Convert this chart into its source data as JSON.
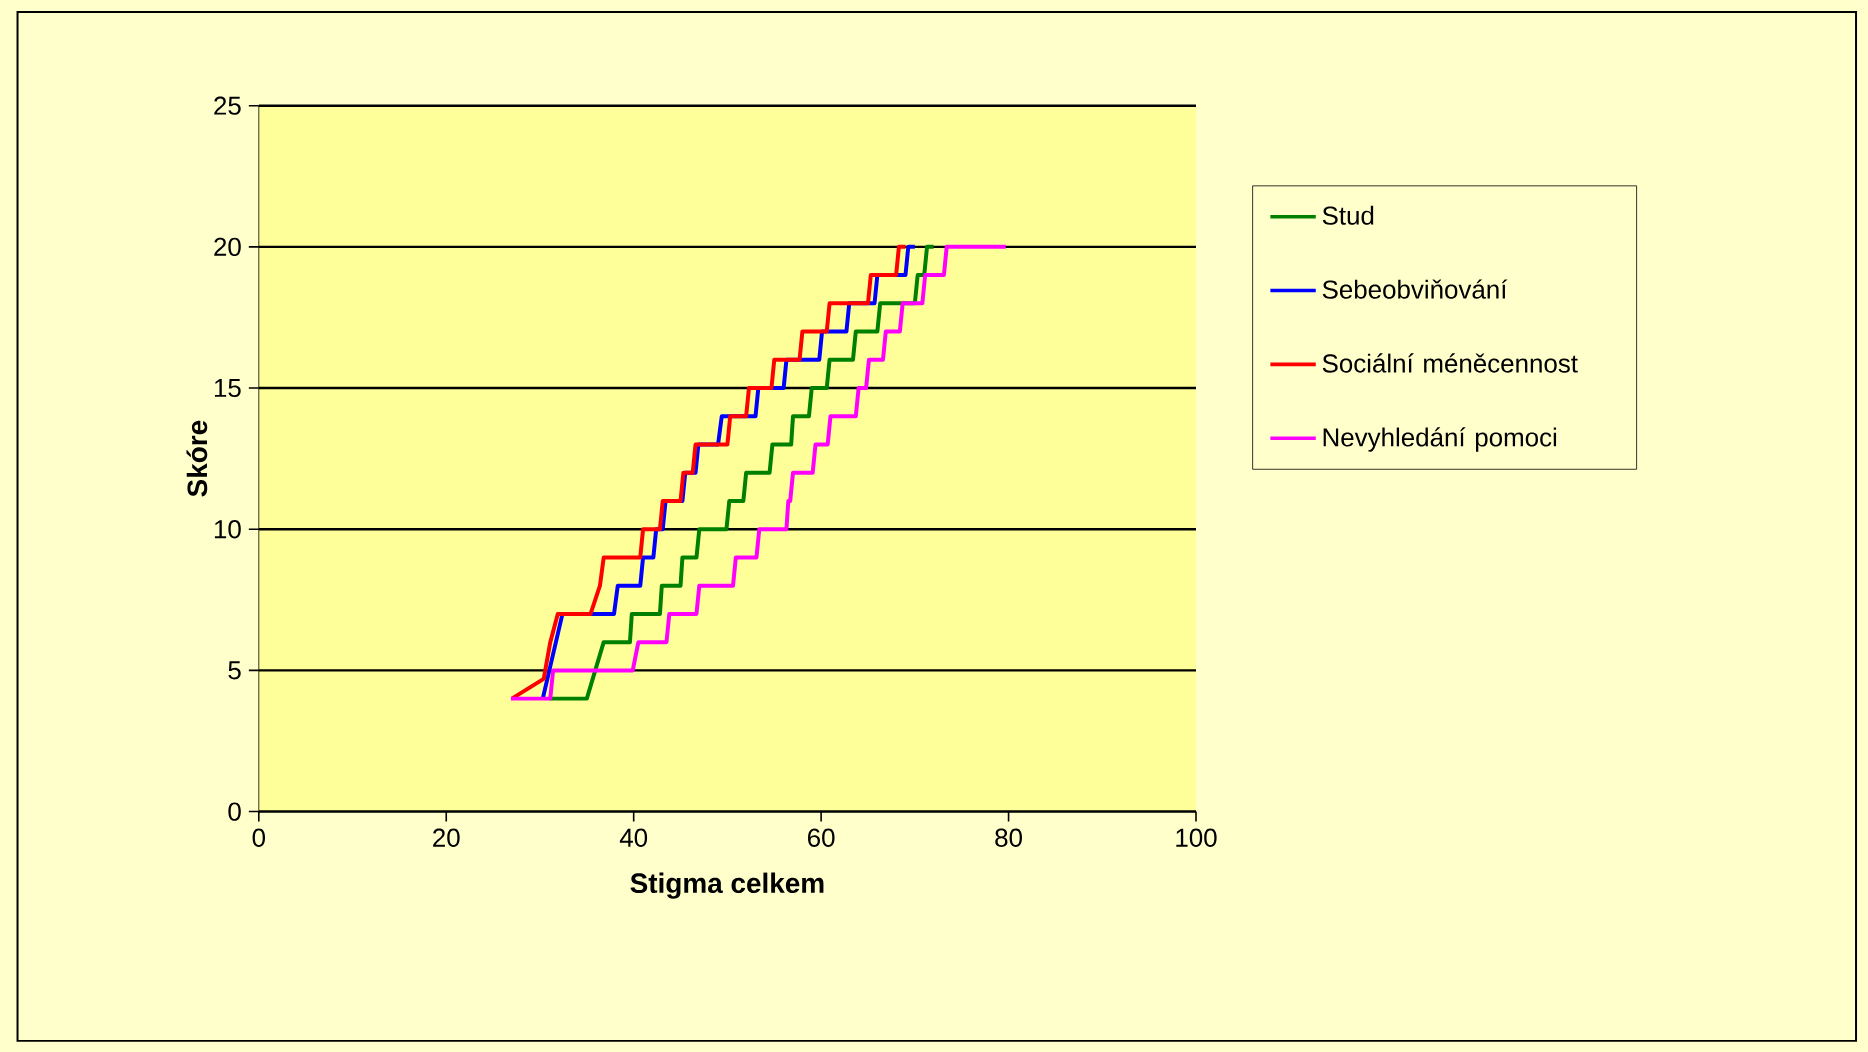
{
  "chart_data": {
    "type": "line",
    "xlabel": "Stigma celkem",
    "ylabel": "Skóre",
    "xlim": [
      0,
      100
    ],
    "ylim": [
      0,
      25
    ],
    "xticks": [
      0,
      20,
      40,
      60,
      80,
      100
    ],
    "yticks": [
      0,
      5,
      10,
      15,
      20,
      25
    ],
    "grid": "y",
    "legend": "right",
    "series": [
      {
        "name": "Stud",
        "color": "#008000",
        "x": [
          31,
          35,
          36.8,
          39.6,
          39.8,
          42.8,
          43,
          45,
          45.2,
          46.7,
          47,
          49.9,
          50.2,
          51.7,
          52,
          54.5,
          54.8,
          56.8,
          57,
          58.7,
          59,
          60.6,
          60.9,
          63.4,
          63.7,
          66,
          66.3,
          70,
          70.3,
          71,
          71.3,
          72
        ],
        "values": [
          4,
          4,
          6,
          6,
          7,
          7,
          8,
          8,
          9,
          9,
          10,
          10,
          11,
          11,
          12,
          12,
          13,
          13,
          14,
          14,
          15,
          15,
          16,
          16,
          17,
          17,
          18,
          18,
          19,
          19,
          20,
          20
        ]
      },
      {
        "name": "Sebeobviňování",
        "color": "#0000ff",
        "x": [
          30.3,
          31,
          32.4,
          37.9,
          38.3,
          40.7,
          41,
          42.1,
          42.4,
          43.1,
          43.4,
          45.2,
          45.5,
          46.6,
          46.9,
          49,
          49.4,
          53,
          53.3,
          56,
          56.3,
          59.8,
          60.1,
          62.7,
          63,
          65.7,
          66,
          69,
          69.3,
          70
        ],
        "values": [
          4,
          5,
          7,
          7,
          8,
          8,
          9,
          9,
          10,
          10,
          11,
          11,
          12,
          12,
          13,
          13,
          14,
          14,
          15,
          15,
          16,
          16,
          17,
          17,
          18,
          18,
          19,
          19,
          20,
          20
        ]
      },
      {
        "name": "Sociální méněcennost",
        "color": "#ff0000",
        "x": [
          27,
          30.4,
          31.1,
          31.9,
          35.4,
          36.4,
          36.8,
          40.7,
          41,
          42.8,
          43.1,
          45,
          45.3,
          46.3,
          46.6,
          50,
          50.3,
          52,
          52.3,
          54.7,
          55,
          57.7,
          58,
          60.6,
          60.9,
          65,
          65.3,
          68,
          68.3,
          69
        ],
        "values": [
          4,
          4.7,
          6,
          7,
          7,
          8,
          9,
          9,
          10,
          10,
          11,
          11,
          12,
          12,
          13,
          13,
          14,
          14,
          15,
          15,
          16,
          16,
          17,
          17,
          18,
          18,
          19,
          19,
          20,
          20
        ]
      },
      {
        "name": "Nevyhledání pomoci",
        "color": "#ff00ff",
        "x": [
          26.9,
          31.1,
          31.4,
          39.9,
          40.5,
          43.5,
          43.8,
          46.7,
          47,
          50.6,
          50.9,
          53.1,
          53.4,
          56.3,
          56.5,
          56.7,
          57,
          59.1,
          59.4,
          60.7,
          61,
          63.7,
          64,
          64.8,
          65.1,
          66.6,
          66.9,
          68.4,
          68.7,
          70.8,
          71.1,
          73.1,
          73.4,
          79.7
        ],
        "values": [
          4,
          4,
          5,
          5,
          6,
          6,
          7,
          7,
          8,
          8,
          9,
          9,
          10,
          10,
          11,
          11,
          12,
          12,
          13,
          13,
          14,
          14,
          15,
          15,
          16,
          16,
          17,
          17,
          18,
          18,
          19,
          19,
          20,
          20
        ]
      }
    ]
  }
}
